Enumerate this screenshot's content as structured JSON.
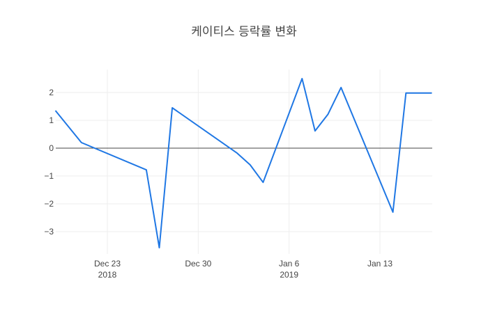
{
  "chart_data": {
    "type": "line",
    "title": "케이티스 등락률 변화",
    "xlabel": "",
    "ylabel": "",
    "x": [
      "2018-12-19",
      "2018-12-21",
      "2018-12-26",
      "2018-12-27",
      "2018-12-28",
      "2019-01-02",
      "2019-01-03",
      "2019-01-04",
      "2019-01-07",
      "2019-01-08",
      "2019-01-09",
      "2019-01-10",
      "2019-01-14",
      "2019-01-15",
      "2019-01-16",
      "2019-01-17"
    ],
    "series": [
      {
        "name": "등락률",
        "color": "#1f77e4",
        "values": [
          1.35,
          0.2,
          -0.78,
          -3.58,
          1.45,
          -0.18,
          -0.6,
          -1.23,
          2.5,
          0.62,
          1.22,
          2.18,
          -2.3,
          1.98,
          1.98,
          1.98
        ]
      }
    ],
    "ylim": [
      -3.8,
      2.9
    ],
    "yticks": [
      2,
      1,
      0,
      -1,
      -2,
      -3
    ],
    "xticks": [
      {
        "date": "2018-12-23",
        "label": "Dec 23",
        "sublabel": "2018"
      },
      {
        "date": "2018-12-30",
        "label": "Dec 30",
        "sublabel": ""
      },
      {
        "date": "2019-01-06",
        "label": "Jan 6",
        "sublabel": "2019"
      },
      {
        "date": "2019-01-13",
        "label": "Jan 13",
        "sublabel": ""
      }
    ],
    "grid": true,
    "zero_line": true,
    "legend": "none"
  }
}
